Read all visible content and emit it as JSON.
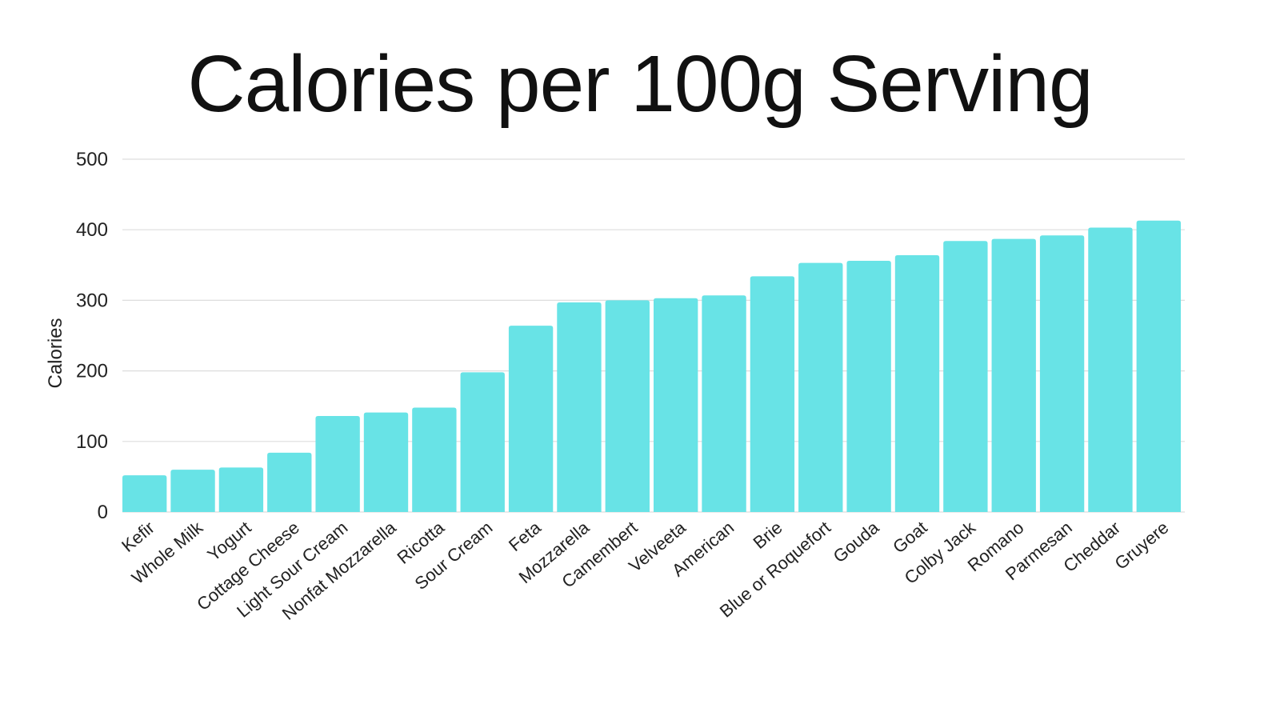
{
  "chart_data": {
    "type": "bar",
    "title": "Calories per 100g Serving",
    "xlabel": "",
    "ylabel": "Calories",
    "ylim": [
      0,
      500
    ],
    "yticks": [
      0,
      100,
      200,
      300,
      400,
      500
    ],
    "grid": true,
    "bar_color": "#68e3e6",
    "categories": [
      "Kefir",
      "Whole Milk",
      "Yogurt",
      "Cottage Cheese",
      "Light Sour Cream",
      "Nonfat Mozzarella",
      "Ricotta",
      "Sour Cream",
      "Feta",
      "Mozzarella",
      "Camembert",
      "Velveeta",
      "American",
      "Brie",
      "Blue or Roquefort",
      "Gouda",
      "Goat",
      "Colby Jack",
      "Romano",
      "Parmesan",
      "Cheddar",
      "Gruyere"
    ],
    "values": [
      52,
      60,
      63,
      84,
      136,
      141,
      148,
      198,
      264,
      297,
      300,
      303,
      307,
      334,
      353,
      356,
      364,
      384,
      387,
      392,
      403,
      413
    ]
  }
}
